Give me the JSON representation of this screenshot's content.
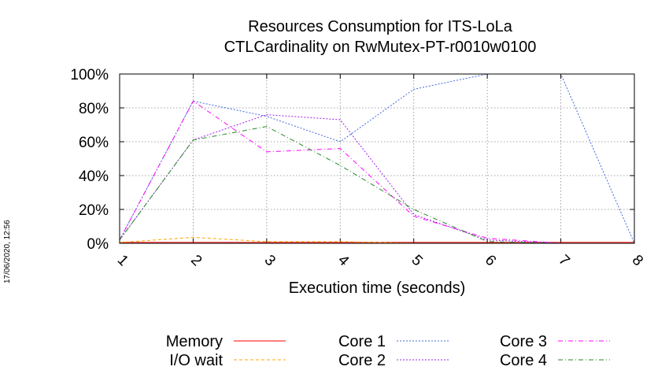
{
  "stamp": "17/06/2020, 12:56",
  "chart_data": {
    "type": "line",
    "title": "Resources Consumption for ITS-LoLa",
    "subtitle": "CTLCardinality on RwMutex-PT-r0010w0100",
    "xlabel": "Execution time (seconds)",
    "ylabel": "",
    "x": [
      1,
      2,
      3,
      4,
      5,
      6,
      7,
      8
    ],
    "x_ticks": [
      "1",
      "2",
      "3",
      "4",
      "5",
      "6",
      "7",
      "8"
    ],
    "xlim": [
      1,
      8
    ],
    "ylim": [
      0,
      100
    ],
    "y_ticks": [
      0,
      20,
      40,
      60,
      80,
      100
    ],
    "y_tick_labels": [
      "0%",
      "20%",
      "40%",
      "60%",
      "80%",
      "100%"
    ],
    "grid": true,
    "legend_position": "bottom",
    "series": [
      {
        "name": "Memory",
        "color": "#ff0000",
        "dash": "solid",
        "values": [
          0.5,
          0.5,
          0.5,
          0.5,
          0.5,
          0.5,
          0.5,
          0.5
        ]
      },
      {
        "name": "I/O wait",
        "color": "#ffa500",
        "dash": "dashed",
        "values": [
          0.5,
          3.5,
          1,
          1,
          0,
          null,
          null,
          null
        ]
      },
      {
        "name": "Core 1",
        "color": "#4169e1",
        "dash": "dotted",
        "values": [
          2,
          84,
          75,
          60,
          91,
          100,
          100,
          0
        ]
      },
      {
        "name": "Core 2",
        "color": "#a020f0",
        "dash": "dotted",
        "values": [
          2,
          61,
          76,
          73,
          17,
          2,
          0,
          null
        ]
      },
      {
        "name": "Core 3",
        "color": "#ff00ff",
        "dash": "dashdot",
        "values": [
          2,
          84,
          54,
          56,
          16,
          3,
          0,
          null
        ]
      },
      {
        "name": "Core 4",
        "color": "#228b22",
        "dash": "dashdot",
        "values": [
          2,
          61,
          69,
          46,
          20,
          1,
          0,
          null
        ]
      }
    ]
  }
}
